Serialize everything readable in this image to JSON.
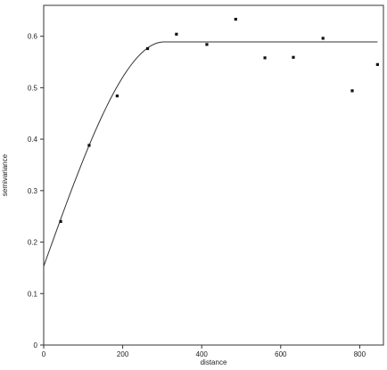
{
  "chart_data": {
    "type": "scatter",
    "title": "",
    "xlabel": "distance",
    "ylabel": "semivariance",
    "xlim": [
      0,
      860
    ],
    "ylim": [
      0,
      0.66
    ],
    "x_ticks": [
      0,
      200,
      400,
      600,
      800
    ],
    "y_ticks": [
      0.0,
      0.1,
      0.2,
      0.3,
      0.4,
      0.5,
      0.6
    ],
    "x_tick_labels": [
      "0",
      "200",
      "400",
      "600",
      "800"
    ],
    "y_tick_labels": [
      "0",
      "0.1",
      "0.2",
      "0.3",
      "0.4",
      "0.5",
      "0.6"
    ],
    "grid": false,
    "legend": "none",
    "points": {
      "x": [
        43,
        115,
        186,
        263,
        336,
        413,
        486,
        560,
        632,
        707,
        781,
        845
      ],
      "y": [
        0.24,
        0.388,
        0.484,
        0.576,
        0.604,
        0.584,
        0.633,
        0.558,
        0.559,
        0.596,
        0.494,
        0.545
      ]
    },
    "fitted_model": {
      "kind": "spherical",
      "nugget": 0.153,
      "sill": 0.589,
      "range": 305,
      "x_max": 845
    },
    "colors": {
      "points": "#111111",
      "line": "#333333",
      "axes": "#333333"
    }
  }
}
